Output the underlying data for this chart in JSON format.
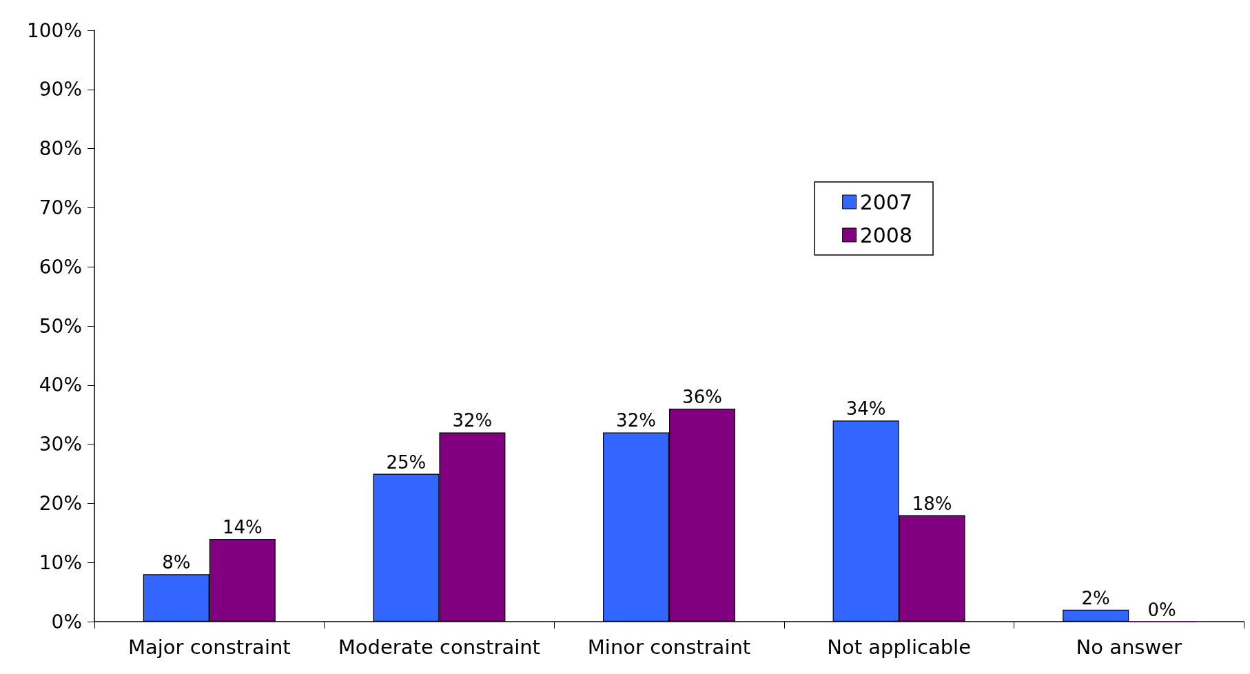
{
  "chart_data": {
    "type": "bar",
    "categories": [
      "Major constraint",
      "Moderate constraint",
      "Minor constraint",
      "Not applicable",
      "No answer"
    ],
    "series": [
      {
        "name": "2007",
        "color": "#3366ff",
        "values": [
          8,
          25,
          32,
          34,
          2
        ],
        "value_labels": [
          "8%",
          "25%",
          "32%",
          "34%",
          "2%"
        ]
      },
      {
        "name": "2008",
        "color": "#800080",
        "values": [
          14,
          32,
          36,
          18,
          0
        ],
        "value_labels": [
          "14%",
          "32%",
          "36%",
          "18%",
          "0%"
        ]
      }
    ],
    "ylim": [
      0,
      100
    ],
    "yticks": [
      {
        "value": 0,
        "label": "0%"
      },
      {
        "value": 10,
        "label": "10%"
      },
      {
        "value": 20,
        "label": "20%"
      },
      {
        "value": 30,
        "label": "30%"
      },
      {
        "value": 40,
        "label": "40%"
      },
      {
        "value": 50,
        "label": "50%"
      },
      {
        "value": 60,
        "label": "60%"
      },
      {
        "value": 70,
        "label": "70%"
      },
      {
        "value": 80,
        "label": "80%"
      },
      {
        "value": 90,
        "label": "90%"
      },
      {
        "value": 100,
        "label": "100%"
      }
    ],
    "grid": false,
    "legend": "top right"
  }
}
